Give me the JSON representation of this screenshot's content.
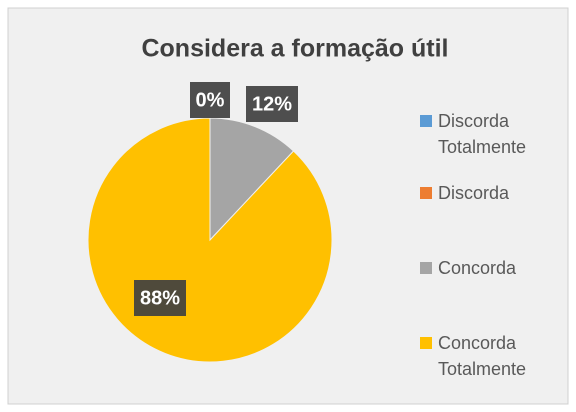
{
  "chart_data": {
    "type": "pie",
    "title": "Considera a formação útil",
    "categories": [
      "Discorda Totalmente",
      "Discorda",
      "Concorda",
      "Concorda Totalmente"
    ],
    "values": [
      0,
      0,
      12,
      88
    ],
    "value_labels": [
      "0%",
      null,
      "12%",
      "88%"
    ],
    "colors": [
      "#5b9bd5",
      "#ed7d31",
      "#a5a5a5",
      "#ffc000"
    ],
    "legend": "right"
  }
}
